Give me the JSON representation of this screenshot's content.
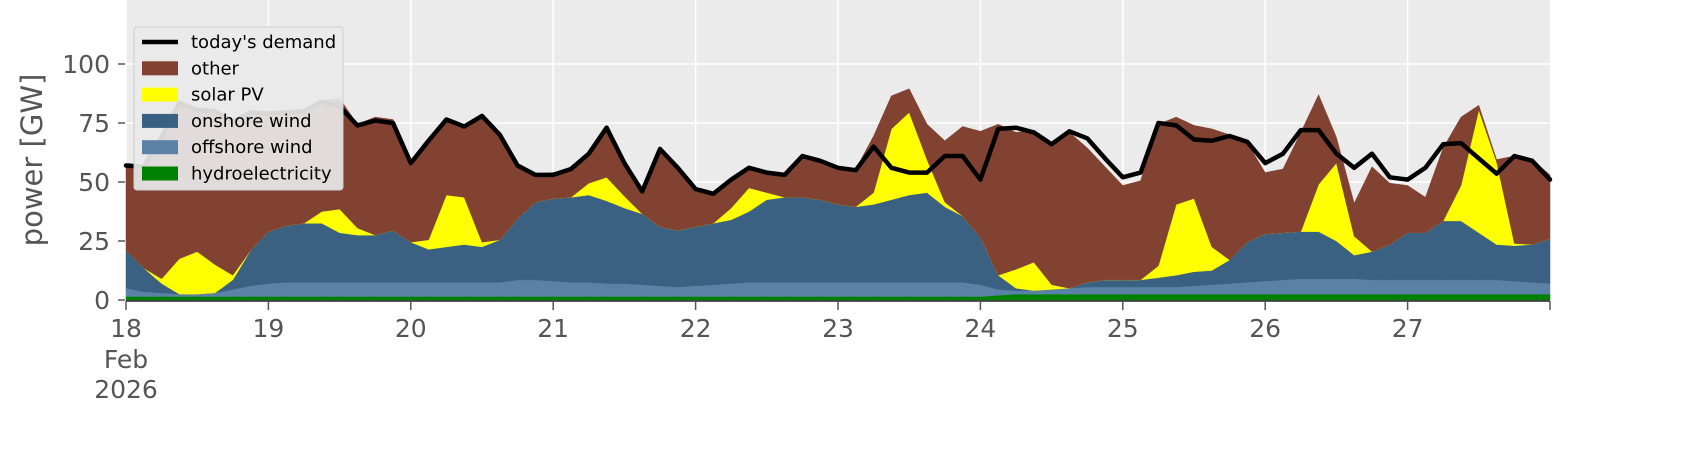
{
  "chart_data": {
    "type": "area",
    "stacked": true,
    "title": "",
    "xlabel": "",
    "ylabel": "power [GW]",
    "ylim": [
      0,
      120
    ],
    "yticks": [
      0,
      25,
      50,
      75,
      100
    ],
    "xlim": [
      0,
      10
    ],
    "xticks": [
      {
        "x": 0,
        "label": "18",
        "sublabel_1": "Feb",
        "sublabel_2": "2026"
      },
      {
        "x": 1,
        "label": "19"
      },
      {
        "x": 2,
        "label": "20"
      },
      {
        "x": 3,
        "label": "21"
      },
      {
        "x": 4,
        "label": "22"
      },
      {
        "x": 5,
        "label": "23"
      },
      {
        "x": 6,
        "label": "24"
      },
      {
        "x": 7,
        "label": "25"
      },
      {
        "x": 8,
        "label": "26"
      },
      {
        "x": 9,
        "label": "27"
      }
    ],
    "grid": true,
    "background": "#ebebeb",
    "legend_position": "top-left",
    "x_unit": "days from 18 Feb 2026",
    "x": [
      0,
      0.125,
      0.25,
      0.375,
      0.5,
      0.625,
      0.75,
      0.875,
      1,
      1.125,
      1.25,
      1.375,
      1.5,
      1.625,
      1.75,
      1.875,
      2,
      2.125,
      2.25,
      2.375,
      2.5,
      2.625,
      2.75,
      2.875,
      3,
      3.125,
      3.25,
      3.375,
      3.5,
      3.625,
      3.75,
      3.875,
      4,
      4.125,
      4.25,
      4.375,
      4.5,
      4.625,
      4.75,
      4.875,
      5,
      5.125,
      5.25,
      5.375,
      5.5,
      5.625,
      5.75,
      5.875,
      6,
      6.125,
      6.25,
      6.375,
      6.5,
      6.625,
      6.75,
      6.875,
      7,
      7.125,
      7.25,
      7.375,
      7.5,
      7.625,
      7.75,
      7.875,
      8,
      8.125,
      8.25,
      8.375,
      8.5,
      8.625,
      8.75,
      8.875,
      9,
      9.125,
      9.25,
      9.375,
      9.5,
      9.625,
      9.75,
      9.875,
      10
    ],
    "series": [
      {
        "name": "hydroelectricity",
        "color": "#008000",
        "values": [
          1.5,
          1.5,
          1.5,
          1.5,
          1.5,
          1.5,
          1.5,
          1.5,
          1.5,
          1.5,
          1.5,
          1.5,
          1.5,
          1.5,
          1.5,
          1.5,
          1.5,
          1.5,
          1.5,
          1.5,
          1.5,
          1.5,
          1.5,
          1.5,
          1.5,
          1.5,
          1.5,
          1.5,
          1.5,
          1.5,
          1.5,
          1.5,
          1.5,
          1.5,
          1.5,
          1.5,
          1.5,
          1.5,
          1.5,
          1.5,
          1.5,
          1.5,
          1.5,
          1.5,
          1.5,
          1.5,
          1.5,
          1.5,
          1.5,
          2,
          2.5,
          2.5,
          2.5,
          2.5,
          2.5,
          2.5,
          2.5,
          2.5,
          2.5,
          2.5,
          2.5,
          2.5,
          2.5,
          2.5,
          2.5,
          2.5,
          2.5,
          2.5,
          2.5,
          2.5,
          2.5,
          2.5,
          2.5,
          2.5,
          2.5,
          2.5,
          2.5,
          2.5,
          2.5,
          2.5,
          2.5
        ]
      },
      {
        "name": "offshore wind",
        "color": "#5b82a6",
        "values": [
          3.5,
          2,
          1.5,
          1,
          1,
          1.5,
          3,
          4.5,
          5.5,
          6,
          6,
          6,
          6,
          6,
          6,
          6,
          6,
          6,
          6,
          6,
          6,
          6,
          7,
          7,
          6.5,
          6,
          6,
          5.5,
          5.5,
          5,
          4.5,
          4,
          4.5,
          5,
          5.5,
          6,
          6,
          6,
          6,
          6,
          6,
          6,
          6,
          6,
          6,
          6,
          6,
          6,
          5,
          2.5,
          1.5,
          1.5,
          2,
          2.5,
          3,
          3,
          3,
          3,
          3,
          3,
          3.5,
          4,
          4.5,
          5,
          5.5,
          6,
          6.5,
          6.5,
          6.5,
          6.5,
          6,
          6,
          6,
          6,
          6,
          6,
          6,
          6,
          5.5,
          5,
          4.5
        ]
      },
      {
        "name": "onshore wind",
        "color": "#3b6182",
        "values": [
          16,
          10,
          4,
          0,
          0,
          0,
          4,
          15,
          22,
          24,
          25,
          25,
          21,
          20,
          20,
          22,
          17,
          14,
          15,
          16,
          15,
          18,
          26,
          33,
          35,
          36,
          37,
          35,
          32,
          30,
          25,
          24,
          25,
          26,
          27,
          30,
          35,
          36,
          36,
          35,
          33,
          32,
          33,
          35,
          37,
          38,
          32,
          28,
          20,
          6,
          1,
          0,
          0,
          0,
          2,
          3,
          3,
          3,
          4,
          5,
          6,
          6,
          10,
          17,
          20,
          20,
          20,
          20,
          16,
          10,
          12,
          15,
          20,
          20,
          25,
          25,
          20,
          15,
          15,
          16,
          19
        ]
      },
      {
        "name": "solar PV",
        "color": "#ffff00",
        "values": [
          0,
          0,
          2,
          15,
          18,
          12,
          2,
          0,
          0,
          0,
          0,
          5,
          10,
          3,
          0,
          0,
          0,
          4,
          22,
          20,
          2,
          0,
          0,
          0,
          0,
          0,
          5,
          10,
          5,
          0,
          0,
          0,
          0,
          0,
          5,
          10,
          3,
          0,
          0,
          0,
          0,
          0,
          5,
          30,
          35,
          14,
          2,
          0,
          0,
          0,
          8,
          12,
          2,
          0,
          0,
          0,
          0,
          0,
          5,
          30,
          31,
          10,
          0,
          0,
          0,
          0,
          0,
          20,
          33,
          8,
          0,
          0,
          0,
          0,
          0,
          15,
          52,
          35,
          1,
          0,
          0
        ]
      },
      {
        "name": "other",
        "color": "#824232",
        "values": [
          35,
          43,
          60,
          67,
          60,
          66,
          65,
          59,
          50,
          48,
          47,
          47,
          47,
          44,
          50,
          47,
          33,
          42,
          32,
          30,
          53,
          45,
          22,
          12,
          11,
          12,
          13,
          22,
          15,
          10,
          34,
          27,
          15,
          12,
          12,
          9,
          8,
          10,
          18,
          17,
          15,
          16,
          24,
          14,
          10,
          15,
          26,
          38,
          45,
          64,
          58,
          56,
          59,
          66,
          57,
          48,
          40,
          42,
          60,
          37,
          31,
          50,
          53,
          42,
          26,
          27,
          42,
          38,
          11,
          14,
          36,
          26,
          20,
          15,
          31,
          29,
          2,
          1,
          37,
          36,
          27
        ]
      }
    ],
    "demand": {
      "name": "today's demand",
      "color": "#000000",
      "values": [
        57,
        56.5,
        69,
        83.5,
        80.5,
        80,
        75.5,
        79.5,
        79,
        79.5,
        80,
        84,
        82,
        74,
        76,
        75,
        58,
        67.5,
        76.5,
        73.5,
        78,
        70,
        57,
        53,
        53,
        55.5,
        62,
        73,
        58,
        46,
        64,
        56,
        47,
        45,
        51,
        56,
        54,
        53,
        61,
        59,
        56,
        55,
        65,
        56,
        54,
        54,
        61,
        61,
        51,
        72.5,
        73,
        71,
        66,
        71.5,
        68.5,
        60,
        52,
        54,
        75,
        74,
        68,
        67.5,
        69.5,
        67,
        58,
        62,
        72,
        72,
        62,
        56,
        62,
        52,
        51,
        56,
        66,
        66.5,
        60,
        53.5,
        61,
        59,
        51
      ]
    }
  }
}
